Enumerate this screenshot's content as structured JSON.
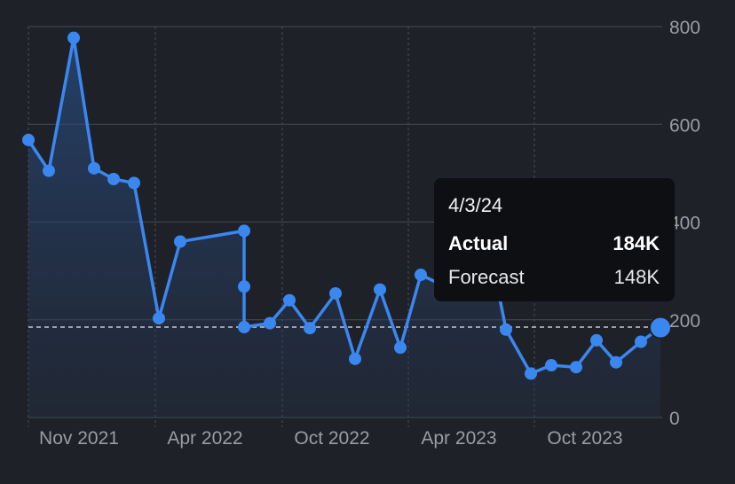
{
  "chart_data": {
    "type": "line",
    "y_ticks": [
      "0",
      "200",
      "400",
      "600",
      "800"
    ],
    "x_tick_labels": [
      "Nov 2021",
      "Apr 2022",
      "Oct 2022",
      "Apr 2023",
      "Oct 2023"
    ],
    "ylim": [
      0,
      800
    ],
    "grid": true,
    "reference_value": 185,
    "series": [
      {
        "values": [
          568,
          505,
          777,
          510,
          488,
          480,
          203,
          360,
          382,
          268,
          185,
          193,
          240,
          183,
          254,
          120,
          262,
          143,
          292,
          273,
          380,
          180,
          90,
          107,
          103,
          158,
          113,
          155,
          184
        ]
      }
    ],
    "line_color": "#3b87f0",
    "tooltip": {
      "date": "4/3/24",
      "rows": [
        {
          "label": "Actual",
          "value": "184K"
        },
        {
          "label": "Forecast",
          "value": "148K"
        }
      ]
    }
  }
}
